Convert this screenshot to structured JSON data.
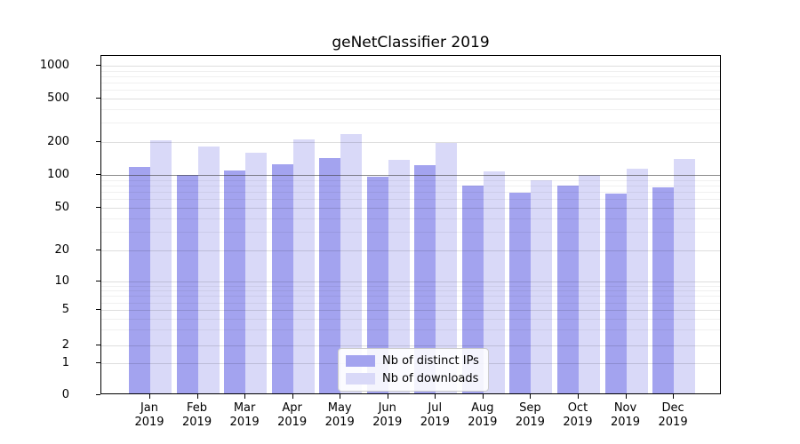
{
  "page_title": "geNetClassifier 2019",
  "chart_data": {
    "type": "bar",
    "title": "geNetClassifier 2019",
    "xlabel": "",
    "ylabel": "",
    "categories": [
      "Jan",
      "Feb",
      "Mar",
      "Apr",
      "May",
      "Jun",
      "Jul",
      "Aug",
      "Sep",
      "Oct",
      "Nov",
      "Dec"
    ],
    "category_year": "2019",
    "series": [
      {
        "name": "Nb of distinct IPs",
        "color": "#a3a3ef",
        "values": [
          115,
          97,
          106,
          120,
          137,
          93,
          118,
          77,
          66,
          77,
          65,
          74
        ]
      },
      {
        "name": "Nb of downloads",
        "color": "#d9d9f8",
        "values": [
          199,
          175,
          155,
          202,
          230,
          133,
          189,
          103,
          86,
          97,
          110,
          135
        ]
      }
    ],
    "y_scale": "symlog",
    "y_ticks": [
      0,
      1,
      2,
      5,
      10,
      20,
      50,
      100,
      200,
      500,
      1000
    ],
    "y_minor_ticks": [
      3,
      4,
      6,
      7,
      8,
      9,
      30,
      40,
      60,
      70,
      80,
      90,
      300,
      400,
      600,
      700,
      800,
      900
    ],
    "ylim": [
      0,
      1240
    ],
    "reference_line": 100,
    "grid": true,
    "legend_position": "lower center"
  }
}
